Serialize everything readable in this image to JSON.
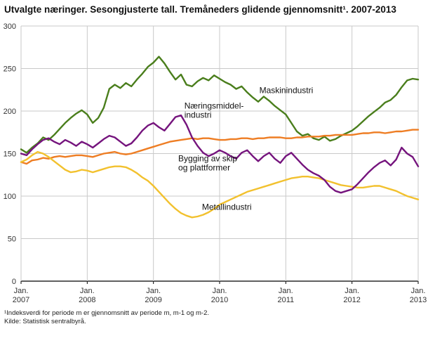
{
  "page": {
    "title": "Utvalgte næringer. Sesongjusterte tall. Tremåneders glidende gjennomsnitt¹. 2007-2013",
    "footnote": "¹Indeksverdi for periode m er gjennomsnitt av periode m, m-1 og m-2.",
    "source": "Kilde: Statistisk sentralbyrå."
  },
  "chart_data": {
    "type": "line",
    "title": "Utvalgte næringer. Sesongjusterte tall. Tremåneders glidende gjennomsnitt¹. 2007-2013",
    "xlabel": "",
    "ylabel": "",
    "ylim": [
      0,
      300
    ],
    "yticks": [
      0,
      50,
      100,
      150,
      200,
      250,
      300
    ],
    "grid": true,
    "legend_position": "inline-labels",
    "x_unit": "month",
    "x_range_months": 72,
    "xticks": [
      {
        "month": 0,
        "label": "Jan.",
        "year": "2007"
      },
      {
        "month": 12,
        "label": "Jan.",
        "year": "2008"
      },
      {
        "month": 24,
        "label": "Jan.",
        "year": "2009"
      },
      {
        "month": 36,
        "label": "Jan.",
        "year": "2010"
      },
      {
        "month": 48,
        "label": "Jan.",
        "year": "2011"
      },
      {
        "month": 60,
        "label": "Jan.",
        "year": "2012"
      },
      {
        "month": 72,
        "label": "Jan.",
        "year": "2013"
      }
    ],
    "series": [
      {
        "name": "Maskinindustri",
        "color": "#4a7e1c",
        "values": [
          155,
          151,
          157,
          162,
          169,
          166,
          172,
          179,
          186,
          192,
          197,
          201,
          196,
          186,
          192,
          204,
          226,
          231,
          227,
          233,
          229,
          237,
          244,
          252,
          257,
          264,
          256,
          246,
          237,
          243,
          231,
          229,
          235,
          239,
          236,
          242,
          238,
          234,
          231,
          226,
          229,
          222,
          216,
          211,
          217,
          212,
          206,
          201,
          196,
          186,
          176,
          171,
          173,
          168,
          166,
          170,
          165,
          167,
          171,
          174,
          177,
          182,
          188,
          194,
          199,
          204,
          210,
          213,
          219,
          228,
          236,
          238,
          237
        ]
      },
      {
        "name": "Næringsmiddelindustri",
        "color": "#ee7d23",
        "values": [
          140,
          138,
          142,
          143,
          145,
          144,
          146,
          147,
          146,
          147,
          148,
          148,
          147,
          146,
          148,
          150,
          151,
          152,
          150,
          149,
          150,
          152,
          154,
          156,
          158,
          160,
          162,
          164,
          165,
          166,
          167,
          168,
          167,
          168,
          168,
          167,
          166,
          166,
          167,
          167,
          168,
          168,
          167,
          168,
          168,
          169,
          169,
          169,
          168,
          168,
          169,
          169,
          170,
          170,
          170,
          171,
          171,
          172,
          172,
          172,
          172,
          173,
          174,
          174,
          175,
          175,
          174,
          175,
          176,
          176,
          177,
          178,
          178
        ]
      },
      {
        "name": "Metallindustri",
        "color": "#f2c12e",
        "values": [
          140,
          143,
          148,
          152,
          150,
          146,
          141,
          136,
          131,
          128,
          129,
          131,
          130,
          128,
          130,
          132,
          134,
          135,
          135,
          134,
          131,
          127,
          122,
          118,
          112,
          105,
          98,
          91,
          85,
          80,
          77,
          75,
          76,
          78,
          81,
          85,
          90,
          93,
          96,
          99,
          102,
          105,
          107,
          109,
          111,
          113,
          115,
          117,
          119,
          121,
          122,
          123,
          123,
          122,
          121,
          119,
          117,
          115,
          113,
          112,
          111,
          110,
          110,
          111,
          112,
          112,
          110,
          108,
          106,
          103,
          100,
          98,
          96
        ]
      },
      {
        "name": "Bygging av skip og plattformer",
        "color": "#75147d",
        "values": [
          150,
          148,
          155,
          161,
          166,
          168,
          164,
          161,
          166,
          163,
          159,
          164,
          161,
          157,
          162,
          167,
          171,
          169,
          164,
          159,
          162,
          169,
          177,
          183,
          186,
          181,
          177,
          185,
          193,
          195,
          184,
          169,
          159,
          151,
          147,
          150,
          154,
          151,
          147,
          144,
          151,
          154,
          147,
          141,
          147,
          151,
          144,
          139,
          147,
          151,
          144,
          137,
          131,
          127,
          124,
          119,
          111,
          106,
          104,
          106,
          108,
          114,
          121,
          128,
          134,
          139,
          142,
          136,
          143,
          157,
          150,
          146,
          135
        ]
      }
    ],
    "annotations": [
      {
        "series": "Maskinindustri",
        "label_lines": [
          "Maskinindustri"
        ],
        "x_month": 43.2,
        "y_value": 221
      },
      {
        "series": "Næringsmiddelindustri",
        "label_lines": [
          "Næringsmiddel-",
          "industri"
        ],
        "x_month": 29.6,
        "y_value": 203
      },
      {
        "series": "Bygging av skip og plattformer",
        "label_lines": [
          "Bygging av skip",
          "og plattformer"
        ],
        "x_month": 28.5,
        "y_value": 141
      },
      {
        "series": "Metallindustri",
        "label_lines": [
          "Metallindustri"
        ],
        "x_month": 32.8,
        "y_value": 84
      }
    ]
  }
}
